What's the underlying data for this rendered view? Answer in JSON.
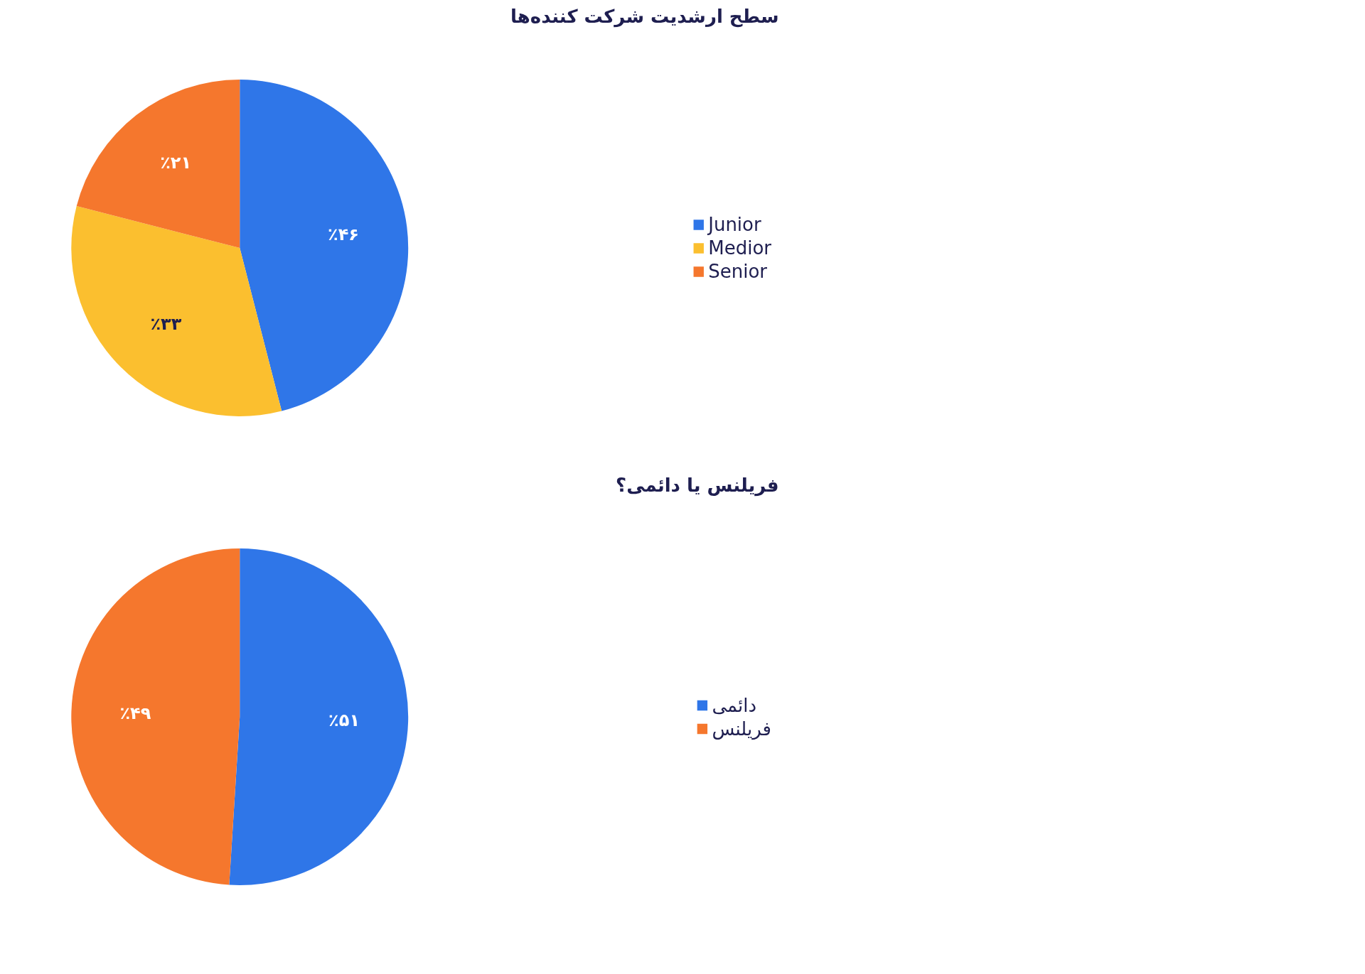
{
  "chart_data": [
    {
      "type": "pie",
      "title": "سطح ارشدیت شرکت کننده‌ها",
      "categories": [
        "Junior",
        "Medior",
        "Senior"
      ],
      "values": [
        46,
        33,
        21
      ],
      "colors": [
        "#2f76e8",
        "#fbbf2f",
        "#f5772d"
      ],
      "value_labels": [
        "٪۴۶",
        "٪۳۳",
        "٪۲۱"
      ],
      "legend": "right"
    },
    {
      "type": "pie",
      "title": "فریلنس یا دائمی؟",
      "categories": [
        "دائمی",
        "فریلنس"
      ],
      "values": [
        51,
        49
      ],
      "colors": [
        "#2f76e8",
        "#f5772d"
      ],
      "value_labels": [
        "٪۵۱",
        "٪۴۹"
      ],
      "legend": "right"
    }
  ]
}
